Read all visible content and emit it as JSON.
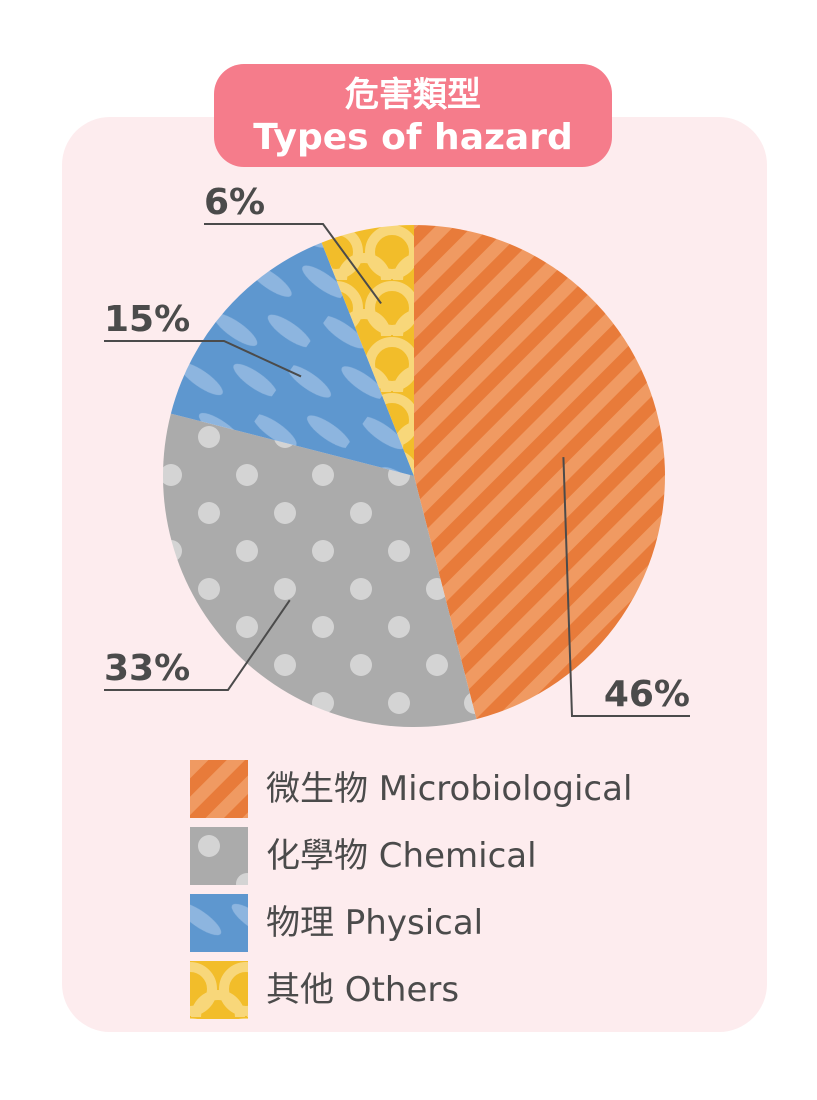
{
  "title": {
    "zh": "危害類型",
    "en": "Types of hazard"
  },
  "chart_data": {
    "type": "pie",
    "title": "危害類型 Types of hazard",
    "slices": [
      {
        "key": "microbiological",
        "label": "微生物 Microbiological",
        "value": 46,
        "display": "46%",
        "color": "#e87b3a"
      },
      {
        "key": "chemical",
        "label": "化學物 Chemical",
        "value": 33,
        "display": "33%",
        "color": "#ababab"
      },
      {
        "key": "physical",
        "label": "物理 Physical",
        "value": 15,
        "display": "15%",
        "color": "#5e97cf"
      },
      {
        "key": "others",
        "label": "其他 Others",
        "value": 6,
        "display": "6%",
        "color": "#f2bd2a"
      }
    ],
    "legend_position": "bottom"
  }
}
